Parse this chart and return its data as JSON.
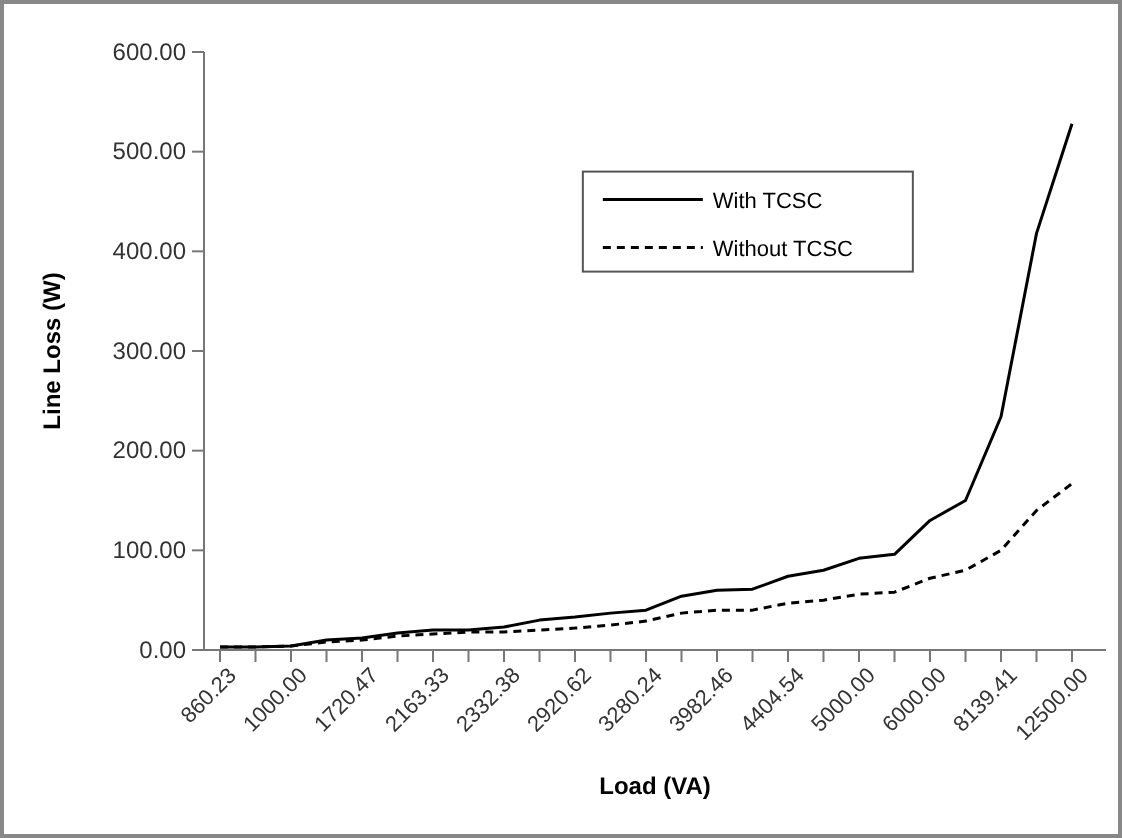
{
  "chart_data": {
    "type": "line",
    "xlabel": "Load (VA)",
    "ylabel": "Line Loss (W)",
    "categories": [
      "860.23",
      null,
      "1000.00",
      null,
      "1720.47",
      null,
      "2163.33",
      null,
      "2332.38",
      null,
      "2920.62",
      null,
      "3280.24",
      null,
      "3982.46",
      null,
      "4404.54",
      null,
      "5000.00",
      null,
      "6000.00",
      null,
      "8139.41",
      null,
      "12500.00"
    ],
    "series": [
      {
        "name": "With TCSC",
        "color": "#000000",
        "line_style": "solid",
        "values": [
          3,
          3,
          4,
          10,
          12,
          17,
          20,
          20,
          23,
          30,
          33,
          37,
          40,
          54,
          60,
          61,
          74,
          80,
          92,
          96,
          130,
          150,
          234,
          418,
          528
        ]
      },
      {
        "name": "Without TCSC",
        "color": "#000000",
        "line_style": "dashed",
        "values": [
          3,
          3,
          4,
          8,
          10,
          14,
          16,
          18,
          18,
          20,
          22,
          25,
          29,
          37,
          40,
          40,
          47,
          50,
          56,
          58,
          72,
          80,
          100,
          140,
          167
        ]
      }
    ],
    "ylim": [
      0,
      600
    ],
    "yticks": [
      {
        "value": 0,
        "label": "0.00"
      },
      {
        "value": 100,
        "label": "100.00"
      },
      {
        "value": 200,
        "label": "200.00"
      },
      {
        "value": 300,
        "label": "300.00"
      },
      {
        "value": 400,
        "label": "400.00"
      },
      {
        "value": 500,
        "label": "500.00"
      },
      {
        "value": 600,
        "label": "600.00"
      }
    ],
    "legend": "top right",
    "grid": false,
    "marker": "none"
  }
}
